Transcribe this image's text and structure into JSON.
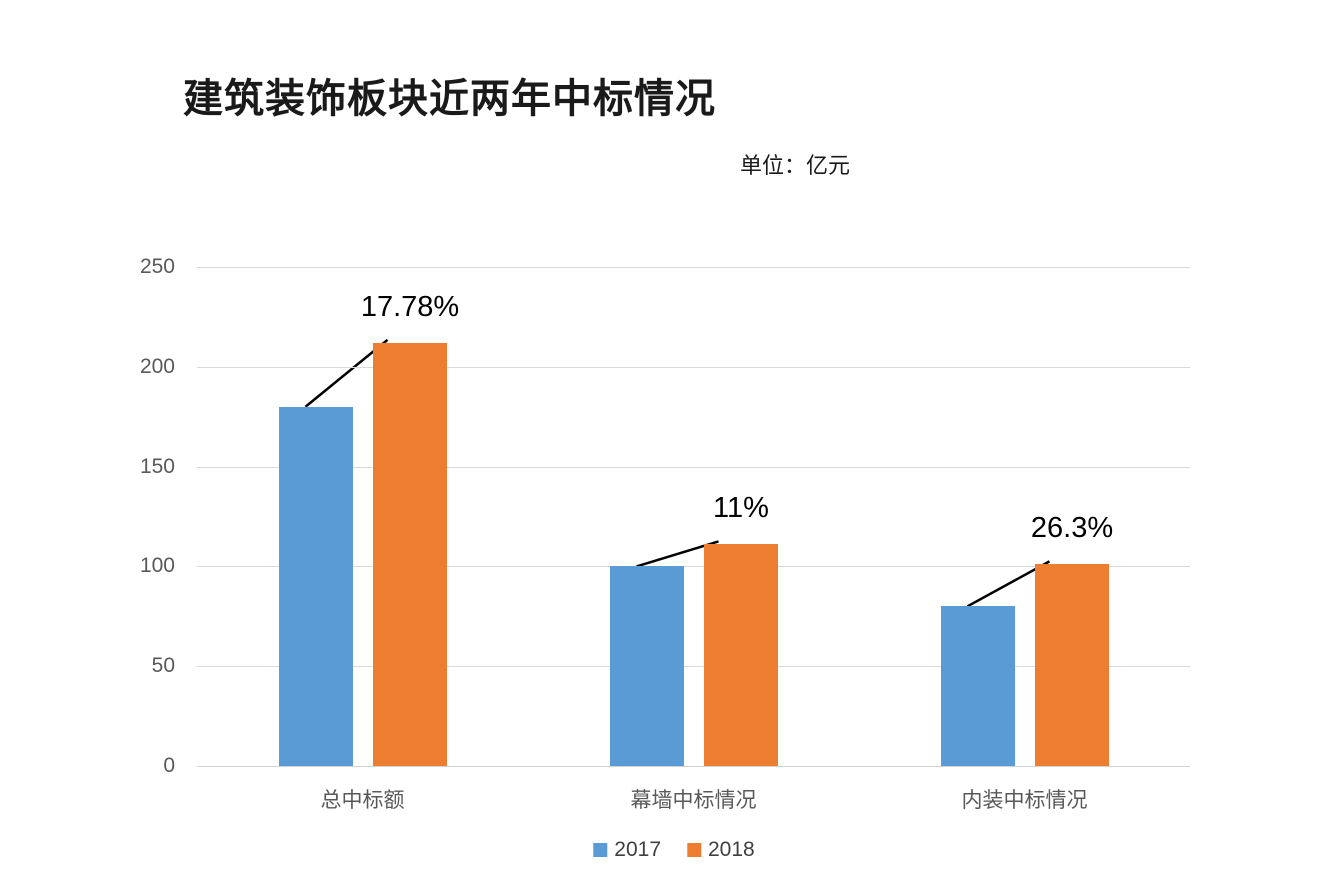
{
  "title": "建筑装饰板块近两年中标情况",
  "unit_label": "单位：亿元",
  "colors": {
    "series_2017": "#5B9BD5",
    "series_2018": "#ED7D31",
    "gridline": "#D9D9D9",
    "axis_text": "#595959",
    "annotation_text": "#000000",
    "annotation_line": "#000000",
    "legend_text": "#404040",
    "title_text": "#1A1A1A",
    "background": "#FFFFFF"
  },
  "chart_data": {
    "type": "bar",
    "title": "建筑装饰板块近两年中标情况",
    "subtitle": "单位：亿元",
    "categories": [
      "总中标额",
      "幕墙中标情况",
      "内装中标情况"
    ],
    "series": [
      {
        "name": "2017",
        "color": "#5B9BD5",
        "values": [
          180,
          100,
          80
        ]
      },
      {
        "name": "2018",
        "color": "#ED7D31",
        "values": [
          212,
          111,
          101
        ]
      }
    ],
    "annotations": [
      {
        "category": "总中标额",
        "label": "17.78%"
      },
      {
        "category": "幕墙中标情况",
        "label": "11%"
      },
      {
        "category": "内装中标情况",
        "label": "26.3%"
      }
    ],
    "ylabel": "",
    "xlabel": "",
    "ylim": [
      0,
      250
    ],
    "yticks": [
      0,
      50,
      100,
      150,
      200,
      250
    ],
    "grid": true,
    "legend_position": "bottom"
  },
  "legend": {
    "items": [
      {
        "label": "2017"
      },
      {
        "label": "2018"
      }
    ]
  }
}
